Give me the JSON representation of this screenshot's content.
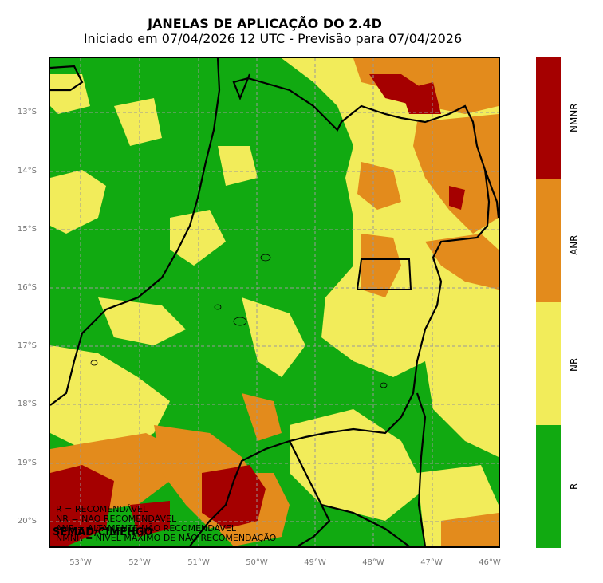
{
  "header": {
    "title": "JANELAS DE APLICAÇÃO DO 2.4D",
    "subtitle": "Iniciado em 07/04/2026 12 UTC - Previsão para 07/04/2026"
  },
  "axes": {
    "lat_ticks": [
      "13°S",
      "14°S",
      "15°S",
      "16°S",
      "17°S",
      "18°S",
      "19°S",
      "20°S"
    ],
    "lon_ticks": [
      "53°W",
      "52°W",
      "51°W",
      "50°W",
      "49°W",
      "48°W",
      "47°W",
      "46°W"
    ]
  },
  "colorbar": {
    "classes": [
      {
        "label": "NMNR",
        "color": "#a50000"
      },
      {
        "label": "ANR",
        "color": "#e38b1c"
      },
      {
        "label": "NR",
        "color": "#f2ec5a"
      },
      {
        "label": "R",
        "color": "#11aa11"
      }
    ]
  },
  "legend": {
    "lines": [
      "R = RECOMENDÁVEL",
      "NR = NÃO RECOMENDÁVEL",
      "ANR = ALTAMENTE NÃO RECOMENDÁVEL",
      "NMNR = NÍVEL MÁXIMO DE NÃO RECOMENDAÇÃO"
    ]
  },
  "credit": "SEMAD/CIMEHGO"
}
